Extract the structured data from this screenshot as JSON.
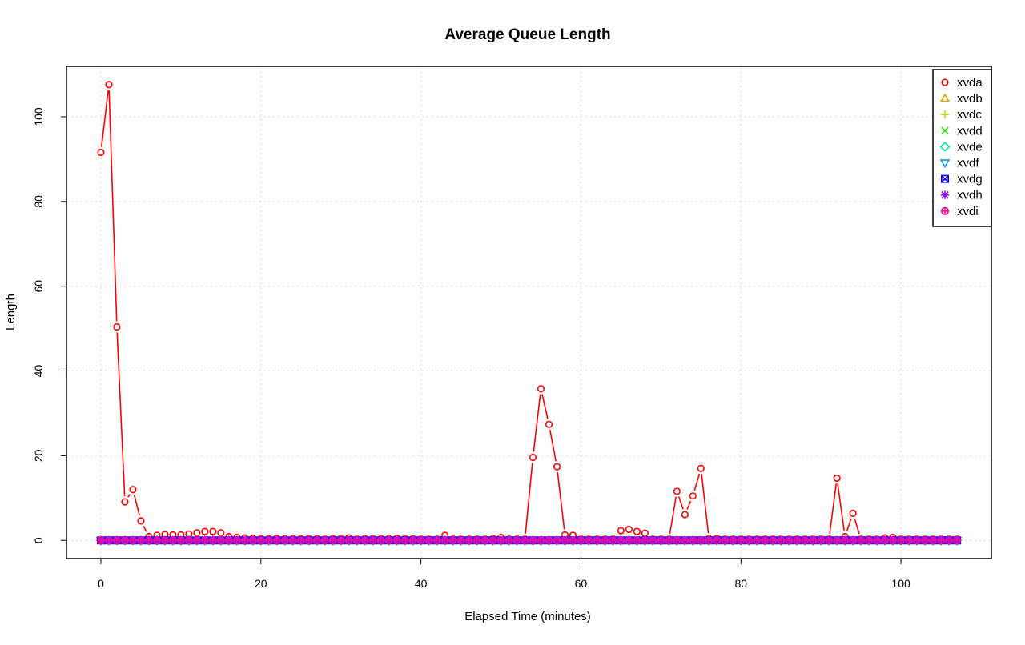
{
  "chart_data": {
    "type": "line",
    "title": "Average Queue Length",
    "xlabel": "Elapsed Time (minutes)",
    "ylabel": "Length",
    "xlim": [
      -4.3,
      111.3
    ],
    "ylim": [
      -4.3,
      111.9
    ],
    "x_ticks": [
      "0",
      "20",
      "40",
      "60",
      "80",
      "100"
    ],
    "y_ticks": [
      "0",
      "20",
      "40",
      "60",
      "80",
      "100"
    ],
    "grid": true,
    "legend_position": "top-right",
    "x": [
      0,
      1,
      2,
      3,
      4,
      5,
      6,
      7,
      8,
      9,
      10,
      11,
      12,
      13,
      14,
      15,
      16,
      17,
      18,
      19,
      20,
      21,
      22,
      23,
      24,
      25,
      26,
      27,
      28,
      29,
      30,
      31,
      32,
      33,
      34,
      35,
      36,
      37,
      38,
      39,
      40,
      41,
      42,
      43,
      44,
      45,
      46,
      47,
      48,
      49,
      50,
      51,
      52,
      53,
      54,
      55,
      56,
      57,
      58,
      59,
      60,
      61,
      62,
      63,
      64,
      65,
      66,
      67,
      68,
      69,
      70,
      71,
      72,
      73,
      74,
      75,
      76,
      77,
      78,
      79,
      80,
      81,
      82,
      83,
      84,
      85,
      86,
      87,
      88,
      89,
      90,
      91,
      92,
      93,
      94,
      95,
      96,
      97,
      98,
      99,
      100,
      101,
      102,
      103,
      104,
      105,
      106,
      107
    ],
    "series": [
      {
        "name": "xvda",
        "color": "#ff0000",
        "marker": "circle",
        "values": [
          91.6,
          107.6,
          50.4,
          9.1,
          12.0,
          4.6,
          0.9,
          1.2,
          1.4,
          1.3,
          1.3,
          1.5,
          1.8,
          2.1,
          2.1,
          1.8,
          0.9,
          0.7,
          0.6,
          0.5,
          0.4,
          0.4,
          0.5,
          0.4,
          0.4,
          0.4,
          0.4,
          0.4,
          0.3,
          0.4,
          0.4,
          0.6,
          0.3,
          0.4,
          0.4,
          0.4,
          0.4,
          0.5,
          0.4,
          0.4,
          0.3,
          0.3,
          0.3,
          1.2,
          0.3,
          0.3,
          0.3,
          0.3,
          0.3,
          0.4,
          0.7,
          0.3,
          0.3,
          0.3,
          19.6,
          35.8,
          27.4,
          17.4,
          1.3,
          1.2,
          0.3,
          0.3,
          0.3,
          0.3,
          0.3,
          2.3,
          2.6,
          2.1,
          1.7,
          0.3,
          0.3,
          0.3,
          11.6,
          6.1,
          10.5,
          17.0,
          0.4,
          0.5,
          0.3,
          0.3,
          0.3,
          0.3,
          0.3,
          0.3,
          0.3,
          0.3,
          0.3,
          0.3,
          0.3,
          0.3,
          0.3,
          0.3,
          14.7,
          0.9,
          6.4,
          0.3,
          0.3,
          0.3,
          0.6,
          0.7,
          0.3,
          0.3,
          0.3,
          0.3,
          0.3,
          0.3,
          0.3,
          0.3
        ]
      },
      {
        "name": "xvdb",
        "color": "#e6a000",
        "marker": "triangle",
        "values": "zeros"
      },
      {
        "name": "xvdc",
        "color": "#b4e600",
        "marker": "plus",
        "values": "zeros"
      },
      {
        "name": "xvdd",
        "color": "#22e600",
        "marker": "cross",
        "values": "zeros"
      },
      {
        "name": "xvde",
        "color": "#00e6a8",
        "marker": "diamond",
        "values": "zeros"
      },
      {
        "name": "xvdf",
        "color": "#0096e6",
        "marker": "triangle-down",
        "values": "zeros"
      },
      {
        "name": "xvdg",
        "color": "#0000ff",
        "marker": "square-x",
        "values": "zeros"
      },
      {
        "name": "xvdh",
        "color": "#9600e6",
        "marker": "asterisk",
        "values": "zeros"
      },
      {
        "name": "xvdi",
        "color": "#ff00a0",
        "marker": "circle-plus",
        "values": "zeros"
      }
    ]
  }
}
